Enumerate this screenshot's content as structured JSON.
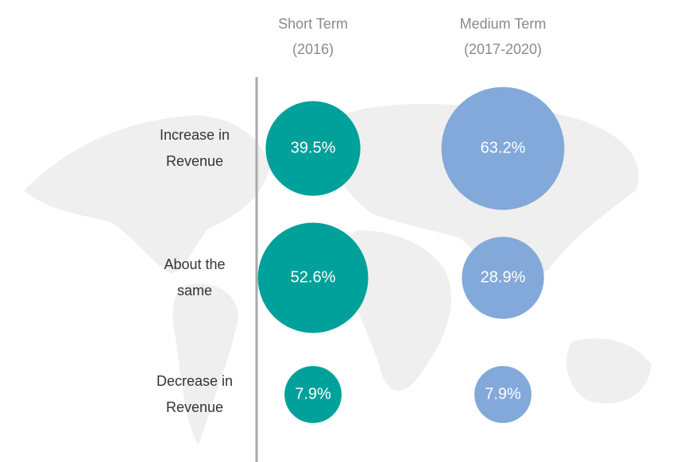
{
  "chart_data": {
    "type": "bubble",
    "categories": [
      "Increase in Revenue",
      "About the same",
      "Decrease in Revenue"
    ],
    "series": [
      {
        "name": "Short Term (2016)",
        "color": "#00a19a",
        "values": [
          39.5,
          52.6,
          7.9
        ],
        "value_labels": [
          "39.5%",
          "52.6%",
          "7.9%"
        ]
      },
      {
        "name": "Medium Term (2017-2020)",
        "color": "#82a9d9",
        "values": [
          63.2,
          28.9,
          7.9
        ],
        "value_labels": [
          "63.2%",
          "28.9%",
          "7.9%"
        ]
      }
    ]
  }
}
